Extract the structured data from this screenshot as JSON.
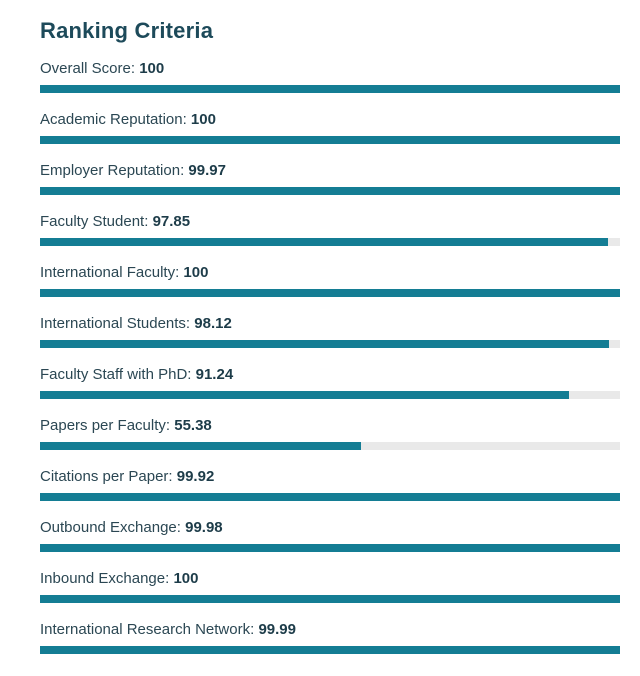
{
  "title": "Ranking Criteria",
  "accent_color": "#147d94",
  "track_color": "#e9e9e9",
  "max_score": 100,
  "criteria": [
    {
      "label": "Overall Score:",
      "value": "100",
      "score": 100
    },
    {
      "label": "Academic Reputation:",
      "value": "100",
      "score": 100
    },
    {
      "label": "Employer Reputation:",
      "value": "99.97",
      "score": 99.97
    },
    {
      "label": "Faculty Student:",
      "value": "97.85",
      "score": 97.85
    },
    {
      "label": "International Faculty:",
      "value": "100",
      "score": 100
    },
    {
      "label": "International Students:",
      "value": "98.12",
      "score": 98.12
    },
    {
      "label": "Faculty Staff with PhD:",
      "value": "91.24",
      "score": 91.24
    },
    {
      "label": "Papers per Faculty:",
      "value": "55.38",
      "score": 55.38
    },
    {
      "label": "Citations per Paper:",
      "value": "99.92",
      "score": 99.92
    },
    {
      "label": "Outbound Exchange:",
      "value": "99.98",
      "score": 99.98
    },
    {
      "label": "Inbound Exchange:",
      "value": "100",
      "score": 100
    },
    {
      "label": "International Research Network:",
      "value": "99.99",
      "score": 99.99
    }
  ]
}
